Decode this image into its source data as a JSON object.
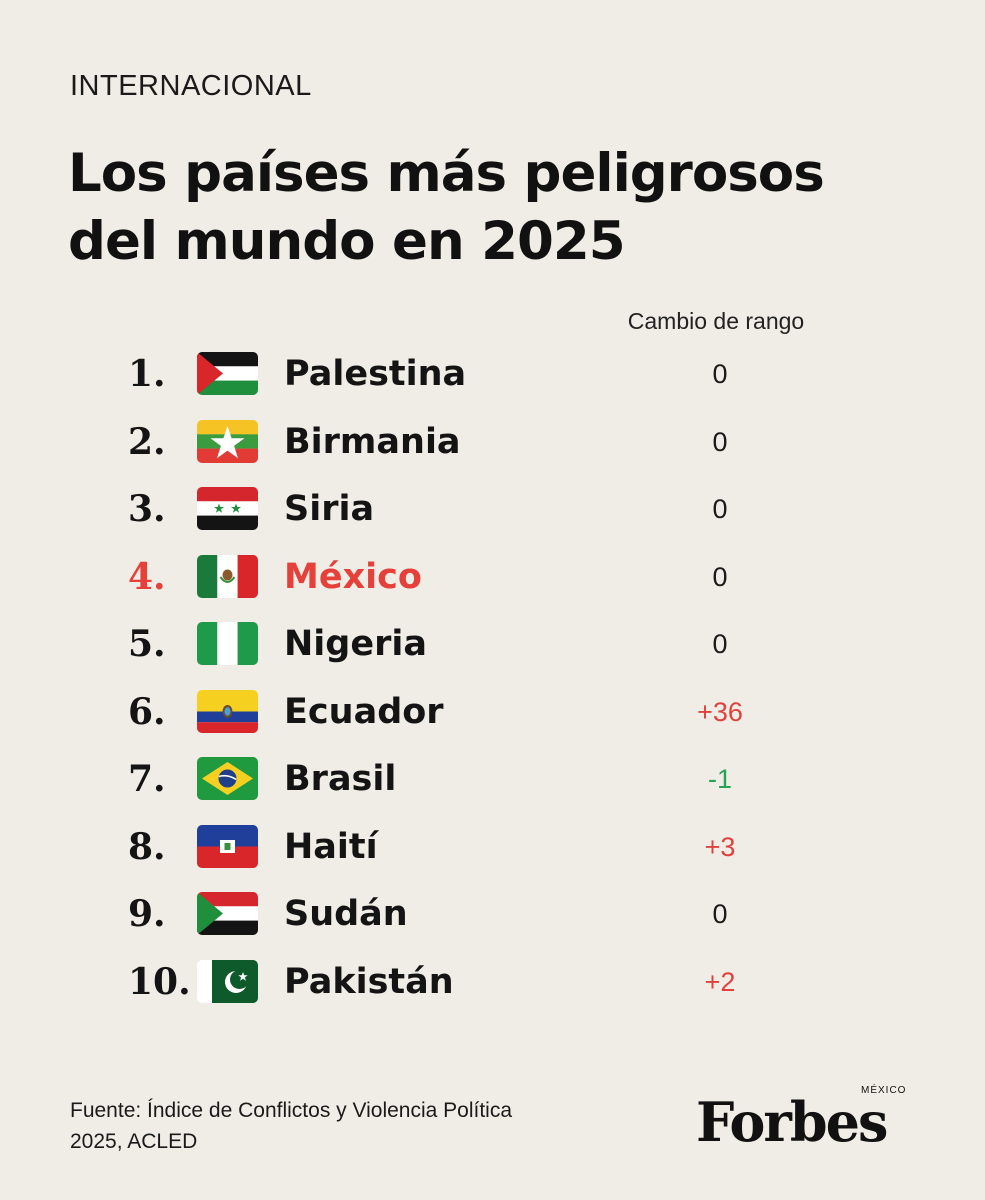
{
  "section": "INTERNACIONAL",
  "title_lines": [
    "Los países más peligrosos",
    "del mundo en 2025"
  ],
  "change_header": "Cambio de rango",
  "colors": {
    "background": "#f0ede6",
    "highlight": "#e5403a",
    "increase": "#e0413c",
    "decrease": "#23a455"
  },
  "rows": [
    {
      "rank": "1.",
      "country": "Palestina",
      "flag": "palestine-flag-icon",
      "change": "0"
    },
    {
      "rank": "2.",
      "country": "Birmania",
      "flag": "myanmar-flag-icon",
      "change": "0"
    },
    {
      "rank": "3.",
      "country": "Siria",
      "flag": "syria-flag-icon",
      "change": "0"
    },
    {
      "rank": "4.",
      "country": "México",
      "flag": "mexico-flag-icon",
      "change": "0",
      "highlight": true
    },
    {
      "rank": "5.",
      "country": "Nigeria",
      "flag": "nigeria-flag-icon",
      "change": "0"
    },
    {
      "rank": "6.",
      "country": "Ecuador",
      "flag": "ecuador-flag-icon",
      "change": "+36"
    },
    {
      "rank": "7.",
      "country": "Brasil",
      "flag": "brazil-flag-icon",
      "change": "-1"
    },
    {
      "rank": "8.",
      "country": "Haití",
      "flag": "haiti-flag-icon",
      "change": "+3"
    },
    {
      "rank": "9.",
      "country": "Sudán",
      "flag": "sudan-flag-icon",
      "change": "0"
    },
    {
      "rank": "10.",
      "country": "Pakistán",
      "flag": "pakistan-flag-icon",
      "change": "+2"
    }
  ],
  "source_lines": [
    "Fuente: Índice de Conflictos y Violencia Política",
    "2025, ACLED"
  ],
  "logo": {
    "wordmark": "Forbes",
    "edition": "MÉXICO"
  }
}
